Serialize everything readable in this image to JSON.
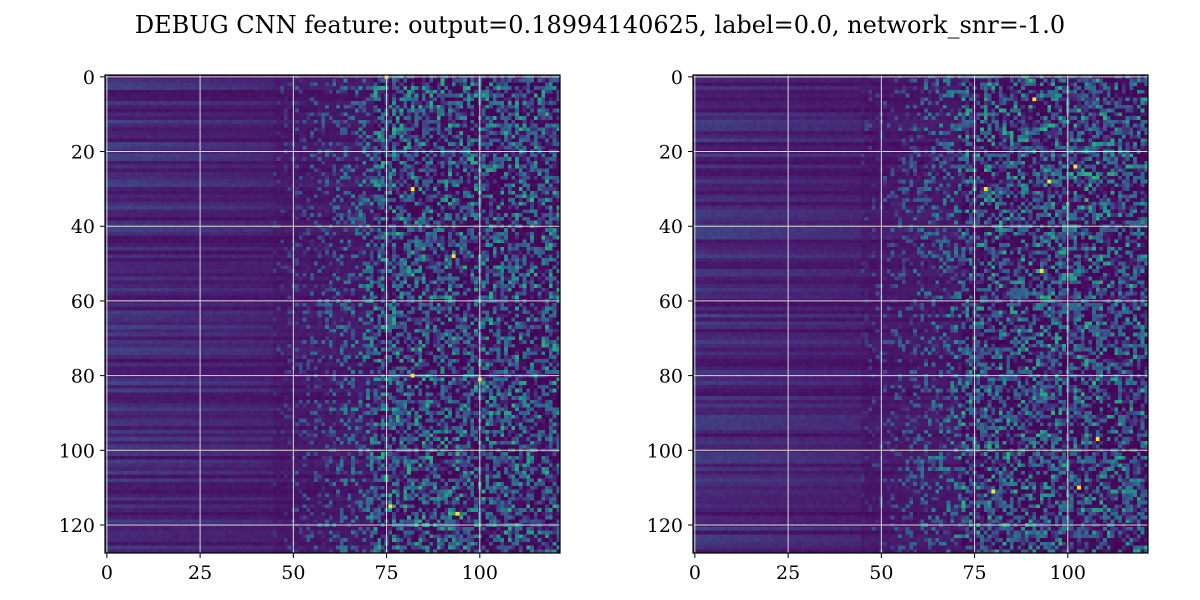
{
  "title": "DEBUG CNN feature: output=0.18994140625, label=0.0, network_snr=-1.0",
  "colors": {
    "colormap": "viridis",
    "low": "#440154",
    "mid": "#21918c",
    "high": "#fde725",
    "grid": "#d8d8d8",
    "background": "#ffffff"
  },
  "chart_data": [
    {
      "type": "heatmap",
      "title": "",
      "xlabel": "",
      "ylabel": "",
      "columns": 122,
      "rows": 128,
      "xlim": [
        -0.5,
        121.5
      ],
      "ylim": [
        127.5,
        -0.5
      ],
      "x_ticks": [
        0,
        25,
        50,
        75,
        100
      ],
      "y_ticks": [
        0,
        20,
        40,
        60,
        80,
        100,
        120
      ],
      "grid": true,
      "colormap": "viridis",
      "bright_cells": [
        [
          75,
          0
        ],
        [
          82,
          30
        ],
        [
          93,
          48
        ],
        [
          82,
          80
        ],
        [
          100,
          81
        ],
        [
          76,
          115
        ],
        [
          94,
          117
        ]
      ]
    },
    {
      "type": "heatmap",
      "title": "",
      "xlabel": "",
      "ylabel": "",
      "columns": 122,
      "rows": 128,
      "xlim": [
        -0.5,
        121.5
      ],
      "ylim": [
        127.5,
        -0.5
      ],
      "x_ticks": [
        0,
        25,
        50,
        75,
        100
      ],
      "y_ticks": [
        0,
        20,
        40,
        60,
        80,
        100,
        120
      ],
      "grid": true,
      "colormap": "viridis",
      "bright_cells": [
        [
          91,
          6
        ],
        [
          102,
          24
        ],
        [
          95,
          28
        ],
        [
          78,
          30
        ],
        [
          93,
          52
        ],
        [
          103,
          110
        ],
        [
          108,
          97
        ],
        [
          80,
          111
        ]
      ]
    }
  ]
}
